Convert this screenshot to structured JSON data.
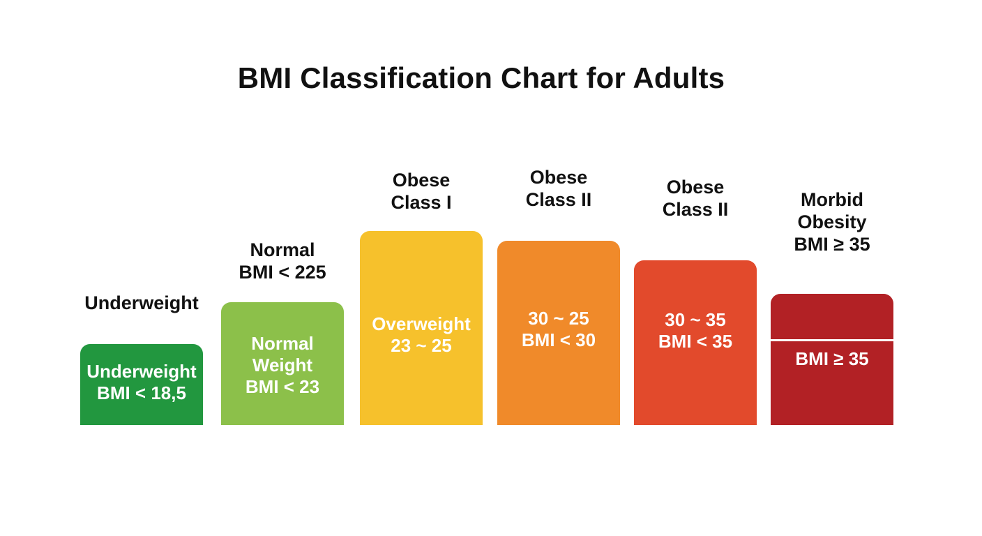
{
  "chart_data": {
    "type": "bar",
    "title": "BMI Classification Chart for Adults",
    "categories": [
      {
        "label_lines": [
          "Underweight"
        ],
        "bar_lines": [
          "Underweight",
          "BMI < 18,5"
        ],
        "color": "#22973f",
        "level": 1
      },
      {
        "label_lines": [
          "Normal",
          "BMI < 225"
        ],
        "bar_lines": [
          "Normal",
          "Weight",
          "BMI < 23"
        ],
        "color": "#8cc04a",
        "level": 2
      },
      {
        "label_lines": [
          "Obese",
          "Class I"
        ],
        "bar_lines": [
          "Overweight",
          "23 ~ 25"
        ],
        "color": "#f6c12c",
        "level": 3
      },
      {
        "label_lines": [
          "Obese",
          "Class II"
        ],
        "bar_lines": [
          "30 ~ 25",
          "BMI < 30"
        ],
        "color": "#f08a2a",
        "level": 3
      },
      {
        "label_lines": [
          "Obese",
          "Class II"
        ],
        "bar_lines": [
          "30 ~ 35",
          "BMI < 35"
        ],
        "color": "#e24a2c",
        "level": 3
      },
      {
        "label_lines": [
          "Morbid",
          "Obesity",
          "BMI ≥ 35"
        ],
        "bar_lines": [
          "BMI ≥ 35"
        ],
        "color": "#b22125",
        "level": 2,
        "has_divider": true
      }
    ],
    "legend": "none",
    "grid": false
  }
}
